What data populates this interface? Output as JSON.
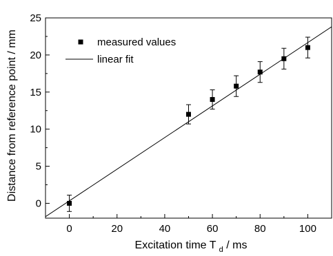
{
  "chart_data": {
    "type": "scatter",
    "xlabel_main": "Excitation time T",
    "xlabel_sub": "d",
    "xlabel_unit": " / ms",
    "ylabel": "Distance from reference point / mm",
    "xlim": [
      -10,
      110
    ],
    "ylim": [
      -2,
      25
    ],
    "xticks": [
      0,
      20,
      40,
      60,
      80,
      100
    ],
    "yticks": [
      0,
      5,
      10,
      15,
      20,
      25
    ],
    "grid": false,
    "legend_position": "top-left",
    "series": [
      {
        "name": "measured values",
        "kind": "points",
        "x": [
          0,
          50,
          60,
          70,
          80,
          90,
          100
        ],
        "y": [
          0,
          12.0,
          14.0,
          15.8,
          17.7,
          19.5,
          21.0
        ],
        "error": [
          1.1,
          1.3,
          1.3,
          1.4,
          1.4,
          1.4,
          1.4
        ]
      },
      {
        "name": "linear fit",
        "kind": "line",
        "x": [
          -10,
          110
        ],
        "y": [
          -1.8,
          23.8
        ]
      }
    ]
  }
}
